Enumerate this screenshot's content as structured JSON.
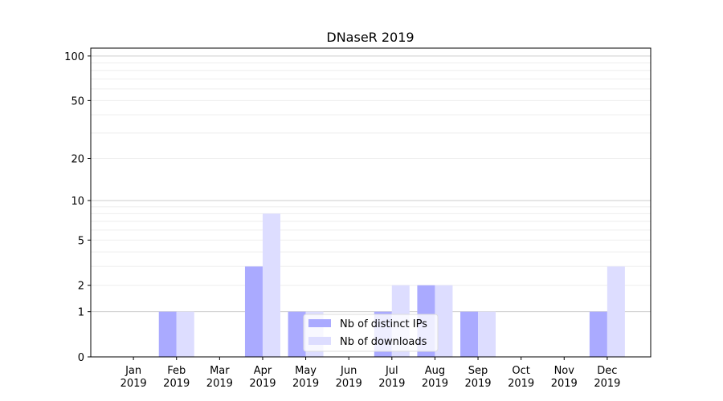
{
  "chart_data": {
    "type": "bar",
    "title": "DNaseR 2019",
    "xlabel": "",
    "ylabel": "",
    "yscale": "log(1+y)",
    "ylim": [
      0,
      113
    ],
    "yticks": [
      0,
      1,
      2,
      5,
      10,
      20,
      50,
      100
    ],
    "ytick_labels": [
      "0",
      "1",
      "2",
      "5",
      "10",
      "20",
      "50",
      "100"
    ],
    "categories": [
      "Jan",
      "Feb",
      "Mar",
      "Apr",
      "May",
      "Jun",
      "Jul",
      "Aug",
      "Sep",
      "Oct",
      "Nov",
      "Dec"
    ],
    "category_year": "2019",
    "series": [
      {
        "name": "Nb of distinct IPs",
        "color": "#aaaaff",
        "values": [
          0,
          1,
          0,
          3,
          1,
          0,
          1,
          2,
          1,
          0,
          0,
          1
        ]
      },
      {
        "name": "Nb of downloads",
        "color": "#ddddff",
        "values": [
          0,
          1,
          0,
          8,
          1,
          0,
          2,
          2,
          1,
          0,
          0,
          3
        ]
      }
    ],
    "legend": "bottom-center",
    "grid": true
  }
}
